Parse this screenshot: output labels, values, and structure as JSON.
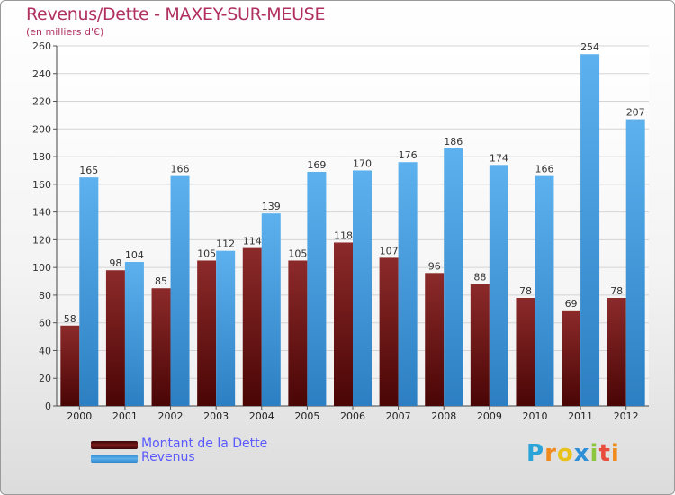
{
  "chart_data": {
    "type": "bar",
    "title": "Revenus/Dette - MAXEY-SUR-MEUSE",
    "subtitle": "(en milliers d'€)",
    "categories": [
      "2000",
      "2001",
      "2002",
      "2003",
      "2004",
      "2005",
      "2006",
      "2007",
      "2008",
      "2009",
      "2010",
      "2011",
      "2012"
    ],
    "series": [
      {
        "name": "Montant de la Dette",
        "color": "#7a1c1c",
        "values": [
          58,
          98,
          85,
          105,
          114,
          105,
          118,
          107,
          96,
          88,
          78,
          69,
          78
        ]
      },
      {
        "name": "Revenus",
        "color": "#4fa3e6",
        "values": [
          165,
          104,
          166,
          112,
          139,
          169,
          170,
          176,
          186,
          174,
          166,
          254,
          207
        ]
      }
    ],
    "ylim": [
      0,
      260
    ],
    "yticks": [
      0,
      20,
      40,
      60,
      80,
      100,
      120,
      140,
      160,
      180,
      200,
      220,
      240,
      260
    ],
    "grid": true,
    "legend_position": "bottom-left"
  },
  "logo": {
    "letters": [
      "P",
      "r",
      "o",
      "x",
      "i",
      "t",
      "i"
    ],
    "colors": [
      "#2aa3d8",
      "#f08a1c",
      "#e8c21a",
      "#2e8fd6",
      "#8cc63f",
      "#e84c3d",
      "#f08a1c"
    ]
  }
}
